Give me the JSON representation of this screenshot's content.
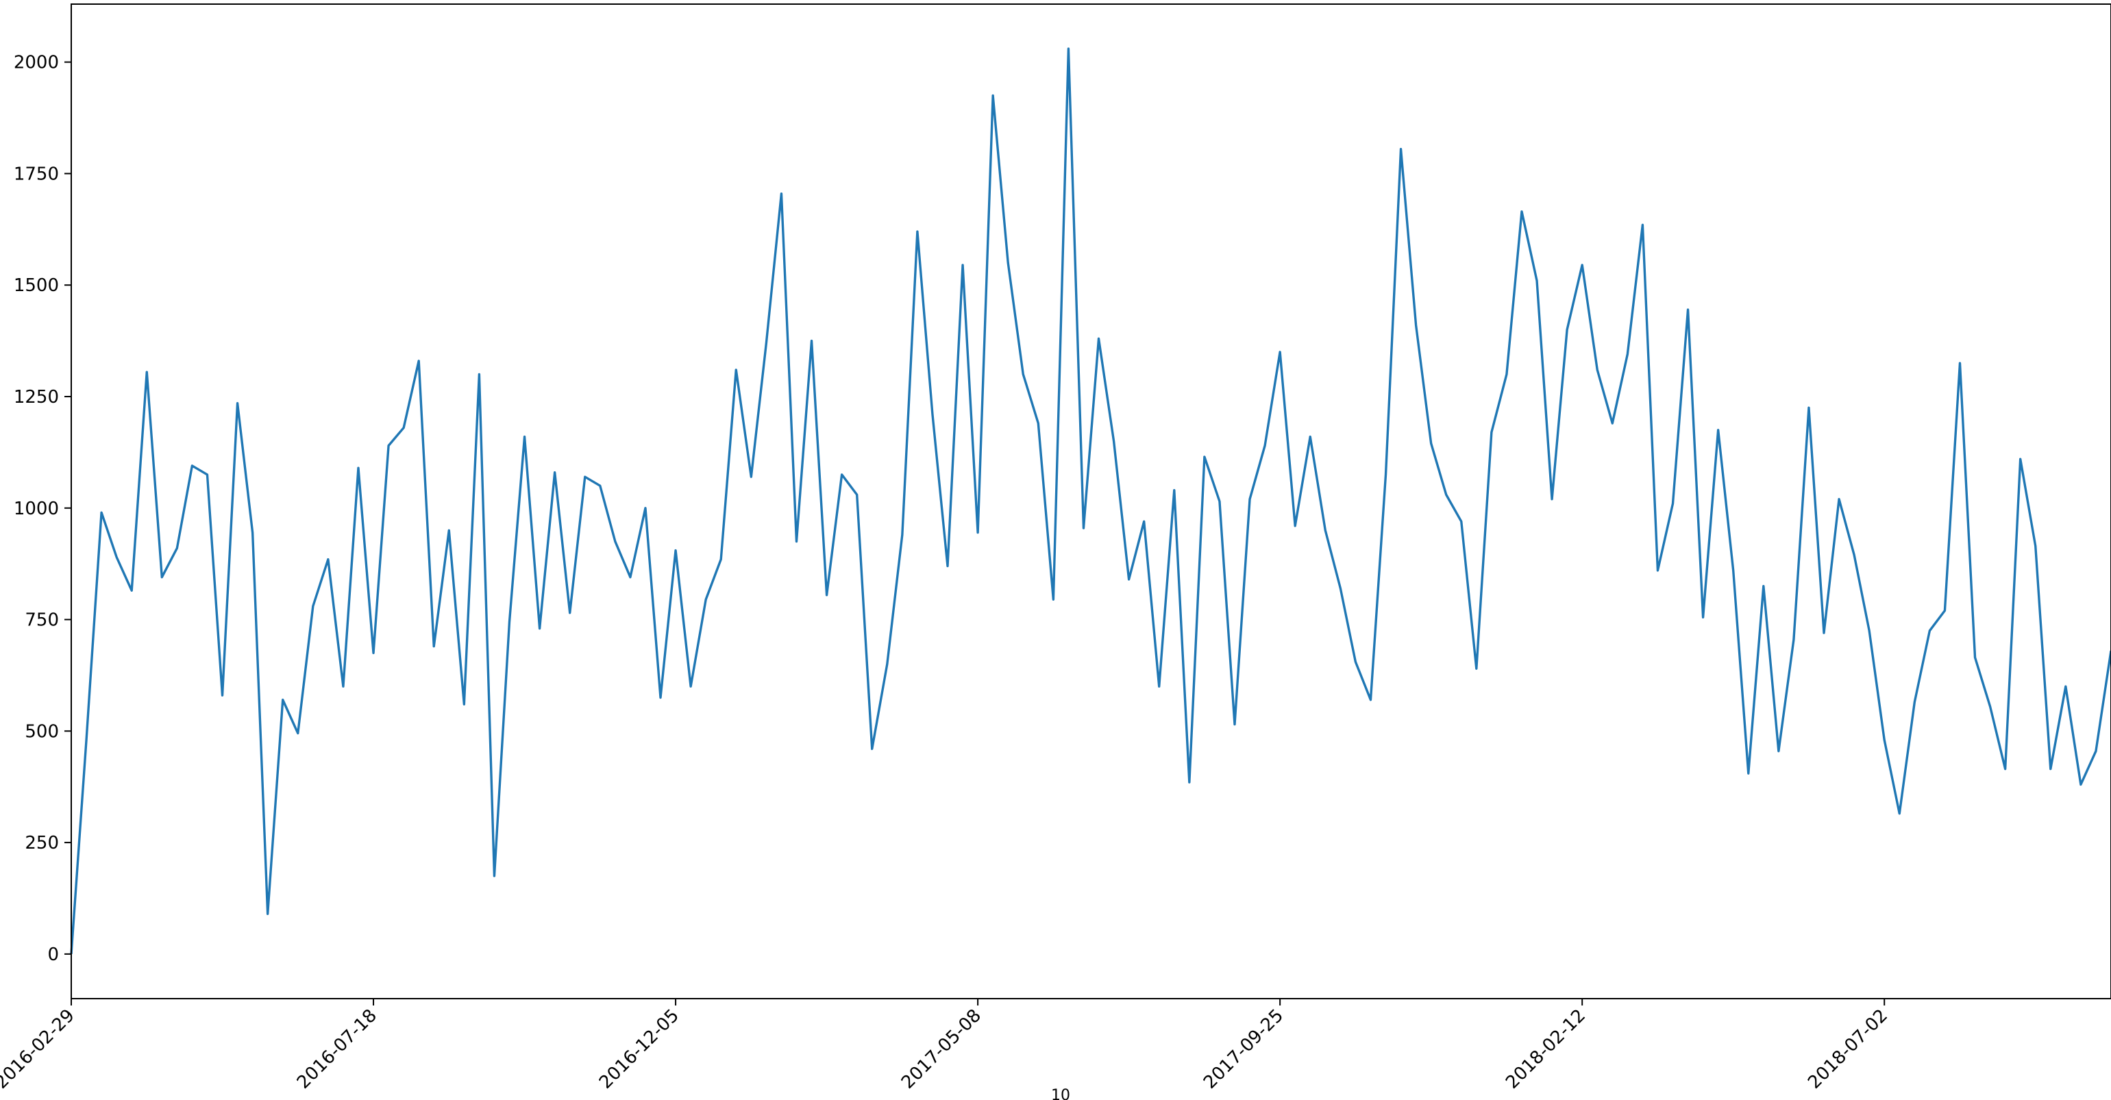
{
  "chart_data": {
    "type": "line",
    "title": "",
    "xlabel": "10",
    "ylabel": "",
    "x_tick_labels": [
      "2016-02-29",
      "2016-07-18",
      "2016-12-05",
      "2017-05-08",
      "2017-09-25",
      "2018-02-12",
      "2018-07-02"
    ],
    "x_tick_positions": [
      0,
      20,
      40,
      60,
      80,
      100,
      120
    ],
    "y_ticks": [
      0,
      250,
      500,
      750,
      1000,
      1250,
      1500,
      1750,
      2000
    ],
    "xlim": [
      0,
      135
    ],
    "ylim": [
      -100,
      2130
    ],
    "grid": false,
    "series": [
      {
        "color": "#1f77b4",
        "values": [
          0,
          480,
          990,
          890,
          815,
          1305,
          845,
          910,
          1095,
          1075,
          580,
          1235,
          945,
          90,
          570,
          495,
          780,
          885,
          600,
          1090,
          675,
          1140,
          1180,
          1330,
          690,
          950,
          560,
          1300,
          175,
          745,
          1160,
          730,
          1080,
          765,
          1070,
          1050,
          925,
          845,
          1000,
          575,
          905,
          600,
          795,
          885,
          1310,
          1070,
          1370,
          1705,
          925,
          1375,
          805,
          1075,
          1030,
          460,
          650,
          940,
          1620,
          1210,
          870,
          1545,
          945,
          1925,
          1550,
          1300,
          1190,
          795,
          2030,
          955,
          1380,
          1150,
          840,
          970,
          600,
          1040,
          385,
          1115,
          1015,
          515,
          1020,
          1140,
          1350,
          960,
          1160,
          950,
          820,
          655,
          570,
          1075,
          1805,
          1410,
          1145,
          1030,
          970,
          640,
          1170,
          1300,
          1665,
          1510,
          1020,
          1400,
          1545,
          1310,
          1190,
          1345,
          1635,
          860,
          1010,
          1445,
          755,
          1175,
          860,
          405,
          825,
          455,
          705,
          1225,
          720,
          1020,
          895,
          725,
          480,
          315,
          565,
          725,
          770,
          1325,
          665,
          555,
          415,
          1110,
          915,
          415,
          600,
          380,
          455,
          680
        ]
      }
    ]
  }
}
